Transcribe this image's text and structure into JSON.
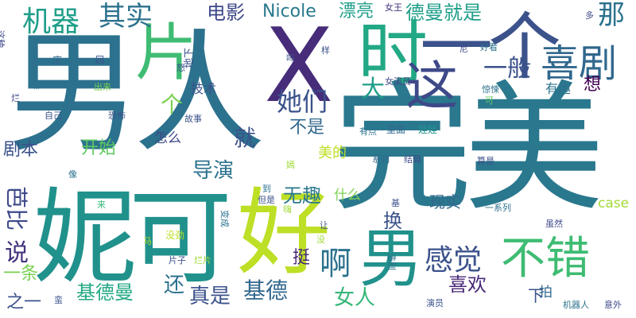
{
  "words": [
    {
      "text": "男人",
      "color": "#2c728e"
    },
    {
      "text": "完美",
      "color": "#2a788e"
    },
    {
      "text": "妮可",
      "color": "#21918c"
    },
    {
      "text": "好",
      "color": "#bddf26"
    },
    {
      "text": "X",
      "color": "#472c7a"
    },
    {
      "text": "片",
      "color": "#3fbc73"
    },
    {
      "text": "时",
      "color": "#22a884"
    },
    {
      "text": "一个",
      "color": "#3b528b"
    },
    {
      "text": "这",
      "color": "#3e4989"
    },
    {
      "text": "喜剧",
      "color": "#31688e"
    },
    {
      "text": "机器",
      "color": "#1f9e89"
    },
    {
      "text": "其实",
      "color": "#2c728e"
    },
    {
      "text": "电影",
      "color": "#3e4989"
    },
    {
      "text": "Nicole",
      "color": "#2a788e"
    },
    {
      "text": "漂亮",
      "color": "#1f9e89"
    },
    {
      "text": "德曼就是",
      "color": "#1f9e89"
    },
    {
      "text": "那",
      "color": "#2c728e"
    },
    {
      "text": "女王",
      "color": "#46327e"
    },
    {
      "text": "多",
      "color": "#3e4989"
    },
    {
      "text": "一般",
      "color": "#3b528b"
    },
    {
      "text": "她们",
      "color": "#3b528b"
    },
    {
      "text": "大",
      "color": "#1f9e89"
    },
    {
      "text": "个",
      "color": "#7ad151"
    },
    {
      "text": "技术",
      "color": "#3b528b"
    },
    {
      "text": "想",
      "color": "#440154"
    },
    {
      "text": "有趣",
      "color": "#2c728e"
    },
    {
      "text": "就",
      "color": "#3b528b"
    },
    {
      "text": "不是",
      "color": "#31688e"
    },
    {
      "text": "剧本",
      "color": "#3b528b"
    },
    {
      "text": "开始",
      "color": "#5ec962"
    },
    {
      "text": "怎么",
      "color": "#3e4989"
    },
    {
      "text": "导演",
      "color": "#2c728e"
    },
    {
      "text": "美的",
      "color": "#bddf26"
    },
    {
      "text": "无趣",
      "color": "#2a788e"
    },
    {
      "text": "什么",
      "color": "#7ad151"
    },
    {
      "text": "芭比",
      "color": "#3e4989"
    },
    {
      "text": "说",
      "color": "#46327e"
    },
    {
      "text": "一条",
      "color": "#7ad151"
    },
    {
      "text": "之一",
      "color": "#3b528b"
    },
    {
      "text": "基德曼",
      "color": "#22a884"
    },
    {
      "text": "还",
      "color": "#2c728e"
    },
    {
      "text": "真是",
      "color": "#3b528b"
    },
    {
      "text": "基德",
      "color": "#31688e"
    },
    {
      "text": "换",
      "color": "#3b528b"
    },
    {
      "text": "挺",
      "color": "#482878"
    },
    {
      "text": "啊",
      "color": "#2c728e"
    },
    {
      "text": "男",
      "color": "#21918c"
    },
    {
      "text": "女人",
      "color": "#35b779"
    },
    {
      "text": "感觉",
      "color": "#3b528b"
    },
    {
      "text": "喜欢",
      "color": "#482878"
    },
    {
      "text": "不错",
      "color": "#3fbc73"
    },
    {
      "text": "现实",
      "color": "#31688e"
    },
    {
      "text": "case",
      "color": "#a0da39"
    },
    {
      "text": "下",
      "color": "#3b528b"
    },
    {
      "text": "拍",
      "color": "#31688e"
    },
    {
      "text": "娃娃",
      "color": "#21918c"
    },
    {
      "text": "里面",
      "color": "#31688e"
    },
    {
      "text": "有点",
      "color": "#2c728e"
    },
    {
      "text": "系列",
      "color": "#31688e"
    },
    {
      "text": "结局",
      "color": "#3e4989"
    },
    {
      "text": "算是",
      "color": "#3b528b"
    },
    {
      "text": "一系列",
      "color": "#2c728e"
    },
    {
      "text": "女演员",
      "color": "#3e4989"
    },
    {
      "text": "惊悚",
      "color": "#2c728e"
    },
    {
      "text": "好看",
      "color": "#2c728e"
    },
    {
      "text": "尼",
      "color": "#3e4989"
    },
    {
      "text": "可",
      "color": "#5ec962"
    },
    {
      "text": "样",
      "color": "#3b528b"
    },
    {
      "text": "吗",
      "color": "#3b528b"
    },
    {
      "text": "废",
      "color": "#31688e"
    },
    {
      "text": "嘛",
      "color": "#2c728e"
    },
    {
      "text": "烂",
      "color": "#3e4989"
    },
    {
      "text": "这种",
      "color": "#3e4989"
    },
    {
      "text": "出来",
      "color": "#7ad151"
    },
    {
      "text": "自己",
      "color": "#3b528b"
    },
    {
      "text": "恐怖",
      "color": "#3b528b"
    },
    {
      "text": "故事",
      "color": "#3b528b"
    },
    {
      "text": "嫣",
      "color": "#a0da39"
    },
    {
      "text": "到",
      "color": "#2c728e"
    },
    {
      "text": "但是",
      "color": "#3b528b"
    },
    {
      "text": "基",
      "color": "#3b528b"
    },
    {
      "text": "变成",
      "color": "#2c728e"
    },
    {
      "text": "让",
      "color": "#3b528b"
    },
    {
      "text": "没",
      "color": "#a0da39"
    },
    {
      "text": "造剧",
      "color": "#2c728e"
    },
    {
      "text": "没劲",
      "color": "#bddf26"
    },
    {
      "text": "片子",
      "color": "#3b528b"
    },
    {
      "text": "烂片",
      "color": "#a0da39"
    },
    {
      "text": "马",
      "color": "#bddf26"
    },
    {
      "text": "像",
      "color": "#2c728e"
    },
    {
      "text": "来",
      "color": "#35b779"
    },
    {
      "text": "蛮",
      "color": "#3b528b"
    },
    {
      "text": "演员",
      "color": "#3b528b"
    },
    {
      "text": "机器人",
      "color": "#2c728e"
    },
    {
      "text": "意外",
      "color": "#3e4989"
    },
    {
      "text": "虽然",
      "color": "#3e4989"
    },
    {
      "text": "怒",
      "color": "#3b528b"
    },
    {
      "text": "回",
      "color": "#3b528b"
    },
    {
      "text": "地下",
      "color": "#3b528b"
    },
    {
      "text": "嗨",
      "color": "#a0da39"
    }
  ]
}
